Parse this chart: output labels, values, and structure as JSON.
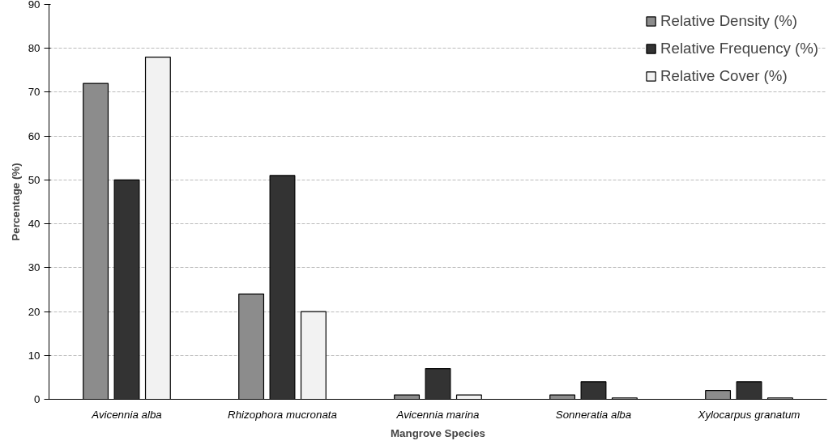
{
  "chart_data": {
    "type": "bar",
    "xlabel": "Mangrove Species",
    "ylabel": "Percentage (%)",
    "categories": [
      "Avicennia alba",
      "Rhizophora mucronata",
      "Avicennia marina",
      "Sonneratia alba",
      "Xylocarpus granatum"
    ],
    "series": [
      {
        "name": "Relative Density (%)",
        "color": "#8c8c8c",
        "values": [
          72,
          24,
          1,
          1,
          2
        ]
      },
      {
        "name": "Relative Frequency (%)",
        "color": "#333333",
        "values": [
          50,
          51,
          7,
          4,
          4
        ]
      },
      {
        "name": "Relative Cover (%)",
        "color": "#f2f2f2",
        "values": [
          78,
          20,
          1,
          0.3,
          0.3
        ]
      }
    ],
    "ylim": [
      0,
      90
    ],
    "yticks": [
      0,
      10,
      20,
      30,
      40,
      50,
      60,
      70,
      80,
      90
    ],
    "grid": "y",
    "legend": "top right"
  }
}
